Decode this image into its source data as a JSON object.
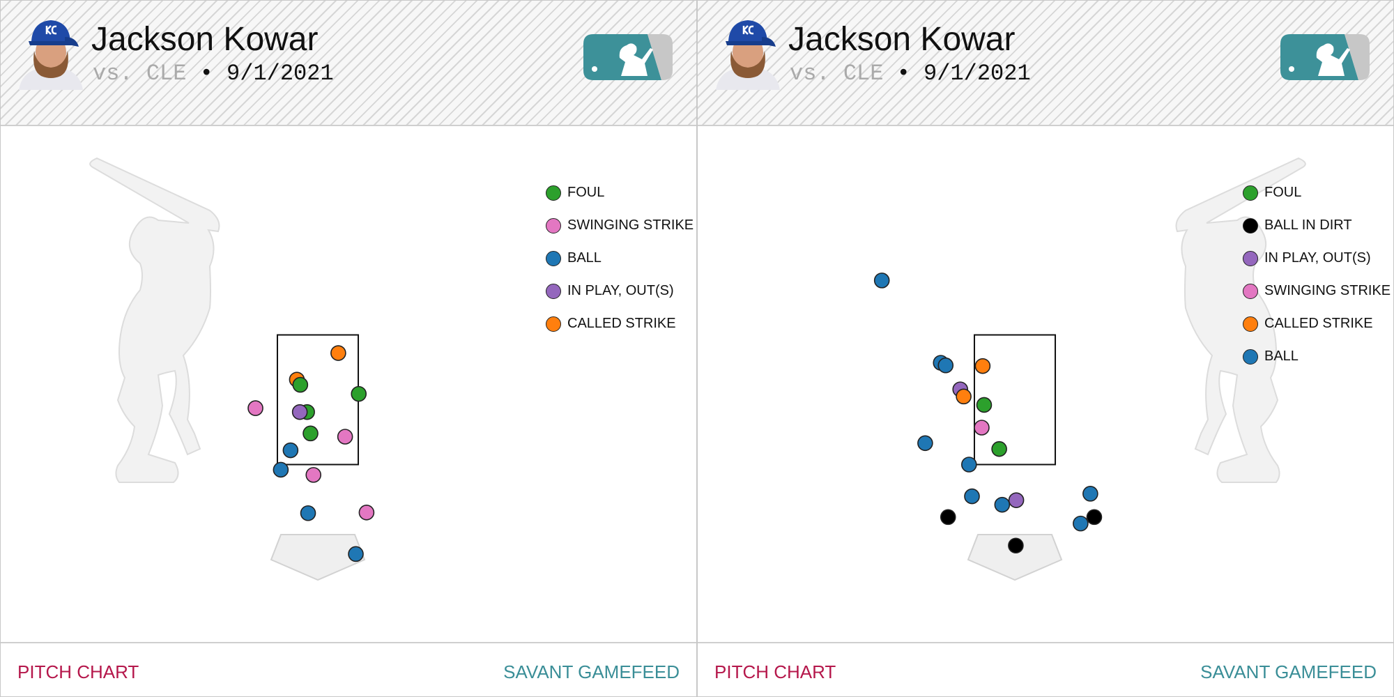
{
  "cards": [
    {
      "pitcher_name": "Jackson Kowar",
      "opponent": "vs. CLE",
      "separator": "•",
      "date": "9/1/2021",
      "batter_side": "R",
      "footer_left": "PITCH CHART",
      "footer_right": "SAVANT GAMEFEED",
      "legend": [
        {
          "label": "FOUL",
          "color": "#2ca02c"
        },
        {
          "label": "SWINGING STRIKE",
          "color": "#e377c2"
        },
        {
          "label": "BALL",
          "color": "#1f77b4"
        },
        {
          "label": "IN PLAY, OUT(S)",
          "color": "#9467bd"
        },
        {
          "label": "CALLED STRIKE",
          "color": "#ff7f0e"
        }
      ]
    },
    {
      "pitcher_name": "Jackson Kowar",
      "opponent": "vs. CLE",
      "separator": "•",
      "date": "9/1/2021",
      "batter_side": "L",
      "footer_left": "PITCH CHART",
      "footer_right": "SAVANT GAMEFEED",
      "legend": [
        {
          "label": "FOUL",
          "color": "#2ca02c"
        },
        {
          "label": "BALL IN DIRT",
          "color": "#000000"
        },
        {
          "label": "IN PLAY, OUT(S)",
          "color": "#9467bd"
        },
        {
          "label": "SWINGING STRIKE",
          "color": "#e377c2"
        },
        {
          "label": "CALLED STRIKE",
          "color": "#ff7f0e"
        },
        {
          "label": "BALL",
          "color": "#1f77b4"
        }
      ]
    }
  ],
  "chart_data": [
    {
      "type": "scatter",
      "xlim": [
        -2.0,
        2.0
      ],
      "ylim": [
        0.0,
        5.0
      ],
      "strike_zone": {
        "x": [
          -0.83,
          0.83
        ],
        "z": [
          1.5,
          3.5
        ]
      },
      "points": [
        {
          "x": 0.42,
          "z": 3.22,
          "result": "CALLED STRIKE"
        },
        {
          "x": -0.43,
          "z": 2.81,
          "result": "CALLED STRIKE"
        },
        {
          "x": -0.36,
          "z": 2.73,
          "result": "FOUL"
        },
        {
          "x": 0.84,
          "z": 2.59,
          "result": "FOUL"
        },
        {
          "x": -1.28,
          "z": 2.37,
          "result": "SWINGING STRIKE"
        },
        {
          "x": -0.22,
          "z": 2.31,
          "result": "FOUL"
        },
        {
          "x": -0.37,
          "z": 2.31,
          "result": "IN PLAY, OUT(S)"
        },
        {
          "x": -0.15,
          "z": 1.98,
          "result": "FOUL"
        },
        {
          "x": 0.56,
          "z": 1.93,
          "result": "SWINGING STRIKE"
        },
        {
          "x": -0.56,
          "z": 1.72,
          "result": "BALL"
        },
        {
          "x": -0.76,
          "z": 1.42,
          "result": "BALL"
        },
        {
          "x": -0.09,
          "z": 1.34,
          "result": "SWINGING STRIKE"
        },
        {
          "x": -0.2,
          "z": 0.75,
          "result": "BALL"
        },
        {
          "x": 1.0,
          "z": 0.76,
          "result": "SWINGING STRIKE"
        },
        {
          "x": 0.78,
          "z": 0.12,
          "result": "BALL"
        }
      ]
    },
    {
      "type": "scatter",
      "xlim": [
        -2.0,
        2.0
      ],
      "ylim": [
        0.0,
        5.0
      ],
      "strike_zone": {
        "x": [
          -0.83,
          0.83
        ],
        "z": [
          1.5,
          3.5
        ]
      },
      "points": [
        {
          "x": -2.73,
          "z": 4.34,
          "result": "BALL"
        },
        {
          "x": -1.52,
          "z": 3.07,
          "result": "BALL"
        },
        {
          "x": -1.42,
          "z": 3.03,
          "result": "BALL"
        },
        {
          "x": -0.66,
          "z": 3.02,
          "result": "CALLED STRIKE"
        },
        {
          "x": -1.12,
          "z": 2.66,
          "result": "IN PLAY, OUT(S)"
        },
        {
          "x": -1.05,
          "z": 2.55,
          "result": "CALLED STRIKE"
        },
        {
          "x": -0.63,
          "z": 2.42,
          "result": "FOUL"
        },
        {
          "x": -0.68,
          "z": 2.07,
          "result": "SWINGING STRIKE"
        },
        {
          "x": -1.84,
          "z": 1.83,
          "result": "BALL"
        },
        {
          "x": -0.32,
          "z": 1.74,
          "result": "FOUL"
        },
        {
          "x": -0.94,
          "z": 1.5,
          "result": "BALL"
        },
        {
          "x": -0.88,
          "z": 1.01,
          "result": "BALL"
        },
        {
          "x": 0.03,
          "z": 0.95,
          "result": "IN PLAY, OUT(S)"
        },
        {
          "x": 1.55,
          "z": 1.05,
          "result": "BALL"
        },
        {
          "x": -0.26,
          "z": 0.88,
          "result": "BALL"
        },
        {
          "x": -1.37,
          "z": 0.69,
          "result": "BALL IN DIRT"
        },
        {
          "x": 1.63,
          "z": 0.69,
          "result": "BALL IN DIRT"
        },
        {
          "x": 1.35,
          "z": 0.59,
          "result": "BALL"
        },
        {
          "x": 0.02,
          "z": 0.25,
          "result": "BALL IN DIRT"
        }
      ]
    }
  ]
}
